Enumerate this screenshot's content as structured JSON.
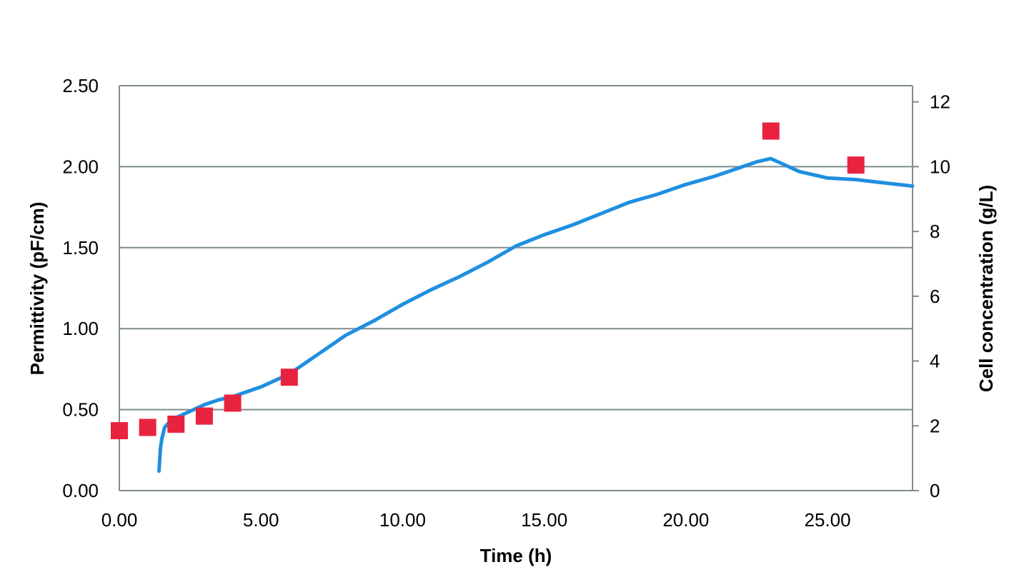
{
  "chart_data": {
    "type": "line",
    "title": "",
    "xlabel": "Time (h)",
    "ylabel": "Permittivity (pF/cm)",
    "y2label": "Cell concentration (g/L)",
    "xlim": [
      0,
      28
    ],
    "ylim": [
      0,
      2.5
    ],
    "y2lim": [
      0,
      12.5
    ],
    "x_ticks": [
      "0.00",
      "5.00",
      "10.00",
      "15.00",
      "20.00",
      "25.00"
    ],
    "y_ticks": [
      "0.00",
      "0.50",
      "1.00",
      "1.50",
      "2.00",
      "2.50"
    ],
    "y2_ticks": [
      "0",
      "2",
      "4",
      "6",
      "8",
      "10",
      "12"
    ],
    "grid": true,
    "colors": {
      "permittivity": "#1f8fe0",
      "cell_concentration": "#e8233f",
      "grid": "#7f8c8c"
    },
    "series": [
      {
        "axis": "left",
        "style": "line",
        "x": [
          1.4,
          1.45,
          1.5,
          1.6,
          1.8,
          2.0,
          2.5,
          3.0,
          3.5,
          4.0,
          5.0,
          6.0,
          7.0,
          8.0,
          9.0,
          10.0,
          11.0,
          12.0,
          13.0,
          14.0,
          15.0,
          16.0,
          17.0,
          18.0,
          19.0,
          20.0,
          21.0,
          22.0,
          22.5,
          23.0,
          23.5,
          24.0,
          25.0,
          26.0,
          27.0,
          28.0
        ],
        "y": [
          0.12,
          0.26,
          0.32,
          0.39,
          0.43,
          0.45,
          0.49,
          0.53,
          0.56,
          0.58,
          0.64,
          0.72,
          0.84,
          0.96,
          1.05,
          1.15,
          1.24,
          1.32,
          1.41,
          1.51,
          1.58,
          1.64,
          1.71,
          1.78,
          1.83,
          1.89,
          1.94,
          2.0,
          2.03,
          2.05,
          2.01,
          1.97,
          1.93,
          1.92,
          1.9,
          1.88
        ]
      },
      {
        "axis": "right",
        "style": "markers",
        "x": [
          0,
          1,
          2,
          3,
          4,
          6,
          23,
          26
        ],
        "y": [
          1.85,
          1.95,
          2.05,
          2.3,
          2.7,
          3.5,
          11.1,
          10.05
        ]
      }
    ]
  }
}
